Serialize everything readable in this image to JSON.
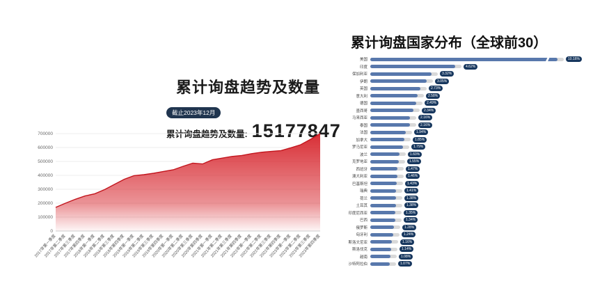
{
  "left_chart": {
    "title": "累计询盘趋势及数量",
    "badge": "截止2023年12月",
    "stat_label": "累计询盘趋势及数量:",
    "stat_value": "15177847"
  },
  "right_chart": {
    "title": "累计询盘国家分布（全球前30）"
  },
  "colors": {
    "area_fill": "#d7282f",
    "area_line": "#c2151d",
    "bar_fill": "#5878ac",
    "bar_track": "#d9d9d9",
    "badge_bg": "#17375e",
    "grid": "#ececec",
    "axis_text": "#666666"
  },
  "chart_data": [
    {
      "type": "area",
      "title": "累计询盘趋势及数量",
      "xlabel": "",
      "ylabel": "",
      "ylim": [
        0,
        700000
      ],
      "yticks": [
        0,
        100000,
        200000,
        300000,
        400000,
        500000,
        600000,
        700000
      ],
      "x": [
        "2017年第一季度",
        "2017年第二季度",
        "2017年第三季度",
        "2017年第四季度",
        "2018年第一季度",
        "2018年第二季度",
        "2018年第三季度",
        "2018年第四季度",
        "2019年第一季度",
        "2019年第二季度",
        "2019年第三季度",
        "2019年第四季度",
        "2020年第一季度",
        "2020年第二季度",
        "2020年第三季度",
        "2020年第四季度",
        "2021年第一季度",
        "2021年第二季度",
        "2021年第三季度",
        "2021年第四季度",
        "2022年第一季度",
        "2022年第二季度",
        "2022年第三季度",
        "2022年第四季度",
        "2023年第一季度",
        "2023年第二季度",
        "2023年第三季度",
        "2023年第四季度"
      ],
      "values": [
        170000,
        200000,
        228000,
        252000,
        268000,
        298000,
        335000,
        372000,
        398000,
        405000,
        415000,
        428000,
        440000,
        465000,
        488000,
        482000,
        512000,
        524000,
        536000,
        543000,
        556000,
        566000,
        572000,
        578000,
        598000,
        620000,
        658000,
        700000
      ],
      "grid": true,
      "legend": "none"
    },
    {
      "type": "bar",
      "orientation": "horizontal",
      "title": "累计询盘国家分布（全球前30）",
      "break_bar_index": 0,
      "categories": [
        "美国",
        "印度",
        "保加利亚",
        "伊朗",
        "英国",
        "意大利",
        "德国",
        "墨西哥",
        "马来西亚",
        "泰国",
        "法国",
        "加拿大",
        "罗马尼亚",
        "波兰",
        "克罗地亚",
        "西班牙",
        "澳大利亚",
        "巴基斯坦",
        "瑞典",
        "荷兰",
        "土耳其",
        "印度尼西亚",
        "巴西",
        "俄罗斯",
        "匈牙利",
        "斯洛文尼亚",
        "斯洛伐克",
        "越南",
        "沙特阿拉伯"
      ],
      "values": [
        10.16,
        4.62,
        3.32,
        3.05,
        2.73,
        2.58,
        2.49,
        2.34,
        2.16,
        2.16,
        1.94,
        1.85,
        1.79,
        1.6,
        1.55,
        1.47,
        1.46,
        1.43,
        1.41,
        1.38,
        1.38,
        1.35,
        1.34,
        1.28,
        1.24,
        1.16,
        1.14,
        1.08,
        1.07
      ],
      "labels": [
        "10.16%",
        "4.62%",
        "3.32%",
        "3.05%",
        "2.73%",
        "2.58%",
        "2.49%",
        "2.34%",
        "2.16%",
        "2.16%",
        "1.94%",
        "1.85%",
        "1.79%",
        "1.60%",
        "1.55%",
        "1.47%",
        "1.46%",
        "1.43%",
        "1.41%",
        "1.38%",
        "1.38%",
        "1.35%",
        "1.34%",
        "1.28%",
        "1.24%",
        "1.16%",
        "1.14%",
        "1.08%",
        "1.07%"
      ],
      "legend": "none"
    }
  ]
}
